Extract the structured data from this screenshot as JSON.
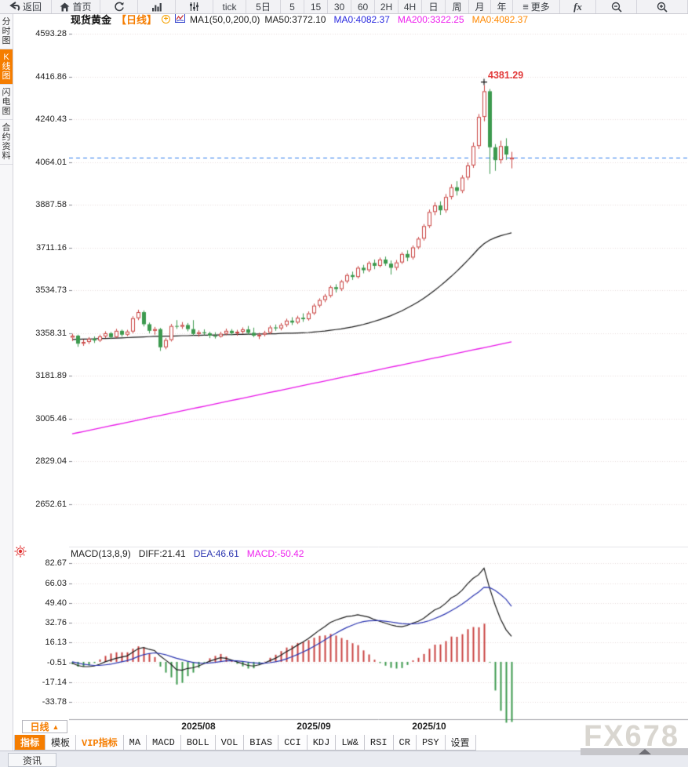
{
  "toolbar": {
    "back": "返回",
    "home": "首页",
    "periods": [
      "tick",
      "5日",
      "5",
      "15",
      "30",
      "60",
      "2H",
      "4H",
      "日",
      "周",
      "月",
      "年"
    ],
    "more": "更多",
    "fx": "fx"
  },
  "sidebar": {
    "items": [
      {
        "label": "分时图",
        "active": false
      },
      {
        "label": "K线图",
        "active": true
      },
      {
        "label": "闪电图",
        "active": false
      },
      {
        "label": "合约资料",
        "active": false
      }
    ]
  },
  "header": {
    "symbol": "现货黄金",
    "period_tag": "【日线】",
    "ma_settings": "MA1(50,0,200,0)",
    "ma_values": [
      {
        "label": "MA50:3772.10",
        "color": "#222222"
      },
      {
        "label": "MA0:4082.37",
        "color": "#2a2adf"
      },
      {
        "label": "MA200:3322.25",
        "color": "#ee22ee"
      },
      {
        "label": "MA0:4082.37",
        "color": "#ff8800"
      }
    ]
  },
  "macd_header": {
    "title": "MACD(13,8,9)",
    "values": [
      {
        "label": "DIFF:21.41",
        "color": "#222222"
      },
      {
        "label": "DEA:46.61",
        "color": "#2b35b0"
      },
      {
        "label": "MACD:-50.42",
        "color": "#ee22ee"
      }
    ]
  },
  "bottom": {
    "period_selector": "日线",
    "tabs": [
      "指标",
      "模板",
      "VIP指标",
      "MA",
      "MACD",
      "BOLL",
      "VOL",
      "BIAS",
      "CCI",
      "KDJ",
      "LW&",
      "RSI",
      "CR",
      "PSY",
      "设置"
    ],
    "active_tab": "指标",
    "vip_tab": "VIP指标",
    "news_tab": "资讯",
    "watermark": "FX678"
  },
  "chart_data": {
    "type": "candlestick+macd",
    "title": "现货黄金 日线 (spot gold daily)",
    "price_ticks": [
      "4593.28",
      "4416.86",
      "4240.43",
      "4064.01",
      "3887.58",
      "3711.16",
      "3534.73",
      "3358.31",
      "3181.89",
      "3005.46",
      "2829.04",
      "2652.61"
    ],
    "macd_ticks": [
      "82.67",
      "66.03",
      "49.40",
      "32.76",
      "16.13",
      "-0.51",
      "-17.14",
      "-33.78"
    ],
    "x_labels": [
      {
        "label": "2025/08",
        "index": 23
      },
      {
        "label": "2025/09",
        "index": 44
      },
      {
        "label": "2025/10",
        "index": 65
      }
    ],
    "current_price": 4082.37,
    "annotation": {
      "text": "4381.29",
      "index": 75
    },
    "candles": [
      [
        3340,
        3356,
        3326,
        3348
      ],
      [
        3348,
        3352,
        3302,
        3315
      ],
      [
        3315,
        3332,
        3306,
        3322
      ],
      [
        3322,
        3342,
        3314,
        3335
      ],
      [
        3335,
        3345,
        3318,
        3328
      ],
      [
        3328,
        3352,
        3322,
        3345
      ],
      [
        3345,
        3366,
        3338,
        3358
      ],
      [
        3358,
        3363,
        3334,
        3342
      ],
      [
        3342,
        3376,
        3338,
        3368
      ],
      [
        3368,
        3373,
        3344,
        3352
      ],
      [
        3352,
        3372,
        3346,
        3365
      ],
      [
        3365,
        3428,
        3358,
        3420
      ],
      [
        3420,
        3455,
        3412,
        3445
      ],
      [
        3445,
        3452,
        3386,
        3395
      ],
      [
        3395,
        3402,
        3358,
        3368
      ],
      [
        3368,
        3384,
        3352,
        3375
      ],
      [
        3375,
        3380,
        3285,
        3300
      ],
      [
        3300,
        3338,
        3292,
        3330
      ],
      [
        3330,
        3396,
        3324,
        3388
      ],
      [
        3388,
        3412,
        3376,
        3385
      ],
      [
        3385,
        3404,
        3376,
        3392
      ],
      [
        3392,
        3400,
        3366,
        3375
      ],
      [
        3375,
        3412,
        3348,
        3355
      ],
      [
        3355,
        3370,
        3344,
        3362
      ],
      [
        3362,
        3374,
        3350,
        3358
      ],
      [
        3358,
        3364,
        3338,
        3348
      ],
      [
        3348,
        3362,
        3336,
        3344
      ],
      [
        3344,
        3364,
        3340,
        3356
      ],
      [
        3356,
        3377,
        3350,
        3368
      ],
      [
        3368,
        3375,
        3350,
        3358
      ],
      [
        3358,
        3372,
        3348,
        3364
      ],
      [
        3364,
        3382,
        3356,
        3374
      ],
      [
        3374,
        3388,
        3352,
        3360
      ],
      [
        3360,
        3381,
        3342,
        3348
      ],
      [
        3348,
        3360,
        3334,
        3352
      ],
      [
        3352,
        3368,
        3345,
        3360
      ],
      [
        3360,
        3390,
        3354,
        3382
      ],
      [
        3382,
        3394,
        3368,
        3378
      ],
      [
        3378,
        3400,
        3370,
        3392
      ],
      [
        3392,
        3418,
        3384,
        3410
      ],
      [
        3410,
        3424,
        3392,
        3402
      ],
      [
        3402,
        3430,
        3396,
        3422
      ],
      [
        3422,
        3440,
        3405,
        3416
      ],
      [
        3416,
        3448,
        3410,
        3440
      ],
      [
        3440,
        3480,
        3434,
        3472
      ],
      [
        3472,
        3502,
        3464,
        3495
      ],
      [
        3495,
        3520,
        3486,
        3512
      ],
      [
        3512,
        3555,
        3505,
        3548
      ],
      [
        3548,
        3560,
        3526,
        3540
      ],
      [
        3540,
        3578,
        3532,
        3572
      ],
      [
        3572,
        3605,
        3564,
        3598
      ],
      [
        3598,
        3612,
        3578,
        3590
      ],
      [
        3590,
        3635,
        3584,
        3628
      ],
      [
        3628,
        3640,
        3605,
        3618
      ],
      [
        3618,
        3655,
        3610,
        3648
      ],
      [
        3648,
        3662,
        3622,
        3636
      ],
      [
        3636,
        3670,
        3630,
        3662
      ],
      [
        3662,
        3674,
        3636,
        3645
      ],
      [
        3645,
        3658,
        3600,
        3628
      ],
      [
        3628,
        3660,
        3618,
        3650
      ],
      [
        3650,
        3692,
        3644,
        3685
      ],
      [
        3685,
        3700,
        3655,
        3670
      ],
      [
        3670,
        3720,
        3662,
        3712
      ],
      [
        3712,
        3755,
        3705,
        3748
      ],
      [
        3748,
        3808,
        3740,
        3800
      ],
      [
        3800,
        3868,
        3792,
        3858
      ],
      [
        3858,
        3898,
        3845,
        3885
      ],
      [
        3885,
        3902,
        3846,
        3865
      ],
      [
        3865,
        3932,
        3855,
        3920
      ],
      [
        3920,
        3972,
        3910,
        3960
      ],
      [
        3960,
        3985,
        3926,
        3945
      ],
      [
        3945,
        4010,
        3936,
        4000
      ],
      [
        4000,
        4062,
        3990,
        4050
      ],
      [
        4050,
        4145,
        4040,
        4130
      ],
      [
        4130,
        4262,
        4118,
        4250
      ],
      [
        4250,
        4381.29,
        4232,
        4356
      ],
      [
        4356,
        4365,
        4015,
        4125
      ],
      [
        4125,
        4138,
        4028,
        4072
      ],
      [
        4072,
        4152,
        4058,
        4130
      ],
      [
        4130,
        4162,
        4073,
        4095
      ],
      [
        4075,
        4106,
        4038,
        4082.37
      ]
    ],
    "ma50": [
      3332,
      3333,
      3334,
      3334,
      3335,
      3336,
      3336,
      3337,
      3338,
      3339,
      3340,
      3341,
      3342,
      3343,
      3344,
      3345,
      3345,
      3346,
      3346,
      3347,
      3348,
      3348,
      3349,
      3349,
      3350,
      3350,
      3351,
      3351,
      3352,
      3352,
      3353,
      3353,
      3354,
      3354,
      3355,
      3355,
      3356,
      3356,
      3357,
      3358,
      3358,
      3359,
      3360,
      3361,
      3363,
      3365,
      3367,
      3370,
      3373,
      3376,
      3380,
      3384,
      3389,
      3394,
      3400,
      3407,
      3414,
      3422,
      3430,
      3440,
      3450,
      3462,
      3474,
      3487,
      3502,
      3518,
      3535,
      3553,
      3572,
      3592,
      3613,
      3635,
      3658,
      3682,
      3707,
      3727,
      3742,
      3752,
      3760,
      3766,
      3772.1
    ],
    "ma200": {
      "type": "linear",
      "from": 2943,
      "to": 3322.25
    },
    "macd": {
      "hist_formula": "2*(diff-dea)",
      "diff": [
        -1,
        -3,
        -4,
        -4,
        -3.5,
        -2,
        0,
        1.5,
        3,
        4,
        5,
        8,
        11,
        12,
        10.5,
        9.5,
        5,
        1.5,
        -2,
        -6.5,
        -7,
        -5.5,
        -5,
        -3.5,
        -1.5,
        0.5,
        2,
        3.5,
        3,
        1.5,
        0,
        -1.5,
        -3,
        -3.5,
        -2.5,
        -1,
        1,
        3,
        5.5,
        8.5,
        11,
        14,
        16.5,
        19.5,
        23,
        26.5,
        29.5,
        33,
        35,
        36.5,
        38,
        38.5,
        39.5,
        38.5,
        37.5,
        35.5,
        34,
        32.5,
        31,
        30,
        29.5,
        30.5,
        32.5,
        34,
        36.5,
        40,
        43.5,
        45.5,
        49,
        53.5,
        56,
        60,
        65.5,
        70,
        73,
        78.5,
        62,
        48,
        36,
        27,
        21.41
      ],
      "dea": [
        0,
        -1,
        -2,
        -2.5,
        -3,
        -3,
        -2.5,
        -2,
        -1,
        0,
        1,
        2.5,
        4.5,
        6,
        7,
        7.5,
        7,
        6,
        4.5,
        3,
        1.8,
        0.5,
        -0.5,
        -1,
        -1.2,
        -1,
        -0.5,
        0.2,
        0.8,
        1,
        0.8,
        0.4,
        -0.2,
        -0.8,
        -1.1,
        -1.1,
        -0.7,
        0,
        1,
        2.5,
        4.2,
        6.1,
        8.2,
        10.4,
        12.9,
        15.6,
        18.4,
        21.3,
        24,
        26.5,
        28.8,
        30.7,
        32.5,
        33.7,
        34.4,
        34.6,
        34.5,
        34.1,
        33.5,
        32.8,
        32.1,
        31.8,
        31.9,
        32.3,
        33.2,
        34.5,
        36.3,
        38.2,
        40.3,
        42.9,
        45.5,
        48.4,
        51.8,
        55.4,
        58.5,
        62.5,
        62.3,
        60,
        56.5,
        52.5,
        46.61
      ]
    },
    "colors": {
      "up": "#c9413f",
      "down": "#3c9a4e",
      "ma50": "#1a1a1a",
      "ma200": "#e816e8",
      "diff": "#1a1a1a",
      "dea": "#2b35b0",
      "current_line": "#2f7ded",
      "grid": "#e6dcdc",
      "annotation": "#e23b3b",
      "accent": "#f57d00"
    }
  }
}
